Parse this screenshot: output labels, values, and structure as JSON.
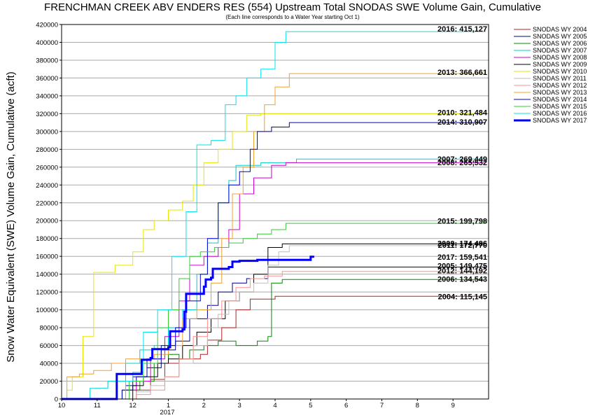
{
  "chart_data": {
    "type": "line",
    "title": "FRENCHMAN CREEK ABV ENDERS RES (554) Upstream Total SNODAS SWE Volume Gain, Cumulative",
    "subtitle": "(Each line corresponds to a Water Year starting Oct 1)",
    "ylabel": "Snow Water Equivalent (SWE) Volume Gain, Cumulative (acft)",
    "xlabel": "",
    "x_unit": "month of water year (10 = Oct 1)",
    "xlim": [
      10,
      22
    ],
    "ylim": [
      0,
      420000
    ],
    "grid": true,
    "legend_position": "right",
    "x_ticks": [
      "10",
      "11",
      "12",
      "1",
      "2",
      "3",
      "4",
      "5",
      "6",
      "7",
      "8",
      "9"
    ],
    "year_label": "2017",
    "y_ticks": [
      "0",
      "20000",
      "40000",
      "60000",
      "80000",
      "100000",
      "120000",
      "140000",
      "160000",
      "180000",
      "200000",
      "220000",
      "240000",
      "260000",
      "280000",
      "300000",
      "320000",
      "340000",
      "360000",
      "380000",
      "400000",
      "420000"
    ],
    "series": [
      {
        "name": "SNODAS WY 2004",
        "color": "#b22222",
        "width": 1,
        "points": [
          [
            10,
            0
          ],
          [
            11.9,
            0
          ],
          [
            12.1,
            10000
          ],
          [
            12.5,
            22000
          ],
          [
            12.9,
            40000
          ],
          [
            13.3,
            45000
          ],
          [
            13.9,
            50000
          ],
          [
            14.1,
            66000
          ],
          [
            14.5,
            80000
          ],
          [
            14.9,
            100000
          ],
          [
            15.3,
            112000
          ],
          [
            16,
            115145
          ],
          [
            21.9,
            115145
          ]
        ]
      },
      {
        "name": "SNODAS WY 2005",
        "color": "#00008b",
        "width": 1,
        "points": [
          [
            10,
            0
          ],
          [
            11.6,
            0
          ],
          [
            11.8,
            15000
          ],
          [
            12.1,
            25000
          ],
          [
            12.4,
            35000
          ],
          [
            12.8,
            55000
          ],
          [
            13.2,
            65000
          ],
          [
            13.6,
            90000
          ],
          [
            14.1,
            105000
          ],
          [
            14.4,
            120000
          ],
          [
            14.8,
            130000
          ],
          [
            15.2,
            135000
          ],
          [
            15.8,
            148000
          ],
          [
            16.2,
            148000
          ],
          [
            21.9,
            149475
          ]
        ]
      },
      {
        "name": "SNODAS WY 2006",
        "color": "#008b00",
        "width": 1,
        "points": [
          [
            10,
            0
          ],
          [
            11.4,
            0
          ],
          [
            11.7,
            10000
          ],
          [
            12.2,
            20000
          ],
          [
            12.6,
            40000
          ],
          [
            13.0,
            50000
          ],
          [
            13.3,
            45000
          ],
          [
            13.6,
            55000
          ],
          [
            14.0,
            60000
          ],
          [
            14.4,
            65000
          ],
          [
            14.9,
            60000
          ],
          [
            15.5,
            65000
          ],
          [
            15.8,
            70000
          ],
          [
            15.9,
            130000
          ],
          [
            16.2,
            134000
          ],
          [
            21.9,
            134543
          ]
        ]
      },
      {
        "name": "SNODAS WY 2007",
        "color": "#00cdcd",
        "width": 1,
        "points": [
          [
            10,
            0
          ],
          [
            10.5,
            0
          ],
          [
            10.8,
            12000
          ],
          [
            11.3,
            20000
          ],
          [
            11.8,
            40000
          ],
          [
            12.2,
            55000
          ],
          [
            12.6,
            60000
          ],
          [
            13.0,
            80000
          ],
          [
            13.4,
            100000
          ],
          [
            13.8,
            140000
          ],
          [
            14.1,
            175000
          ],
          [
            14.4,
            220000
          ],
          [
            14.7,
            245000
          ],
          [
            14.9,
            262000
          ],
          [
            15.6,
            265000
          ],
          [
            16.6,
            269000
          ],
          [
            21.9,
            269449
          ]
        ]
      },
      {
        "name": "SNODAS WY 2008",
        "color": "#cd00cd",
        "width": 1,
        "points": [
          [
            10,
            0
          ],
          [
            11.5,
            0
          ],
          [
            11.8,
            10000
          ],
          [
            12.1,
            20000
          ],
          [
            12.5,
            45000
          ],
          [
            12.9,
            70000
          ],
          [
            13.3,
            110000
          ],
          [
            13.6,
            150000
          ],
          [
            14.0,
            160000
          ],
          [
            14.4,
            170000
          ],
          [
            14.7,
            190000
          ],
          [
            15.0,
            230000
          ],
          [
            15.4,
            248000
          ],
          [
            15.9,
            262000
          ],
          [
            16.3,
            265000
          ],
          [
            21.9,
            265532
          ]
        ]
      },
      {
        "name": "SNODAS WY 2009",
        "color": "#000000",
        "width": 1,
        "points": [
          [
            10,
            0
          ],
          [
            11.6,
            0
          ],
          [
            12.0,
            15000
          ],
          [
            12.3,
            25000
          ],
          [
            12.7,
            40000
          ],
          [
            13.0,
            45000
          ],
          [
            13.4,
            60000
          ],
          [
            13.8,
            75000
          ],
          [
            14.2,
            90000
          ],
          [
            14.6,
            110000
          ],
          [
            15.0,
            120000
          ],
          [
            15.4,
            140000
          ],
          [
            15.8,
            170000
          ],
          [
            16.2,
            174000
          ],
          [
            21.9,
            174486
          ]
        ]
      },
      {
        "name": "SNODAS WY 2010",
        "color": "#e6e600",
        "width": 1,
        "points": [
          [
            10,
            0
          ],
          [
            10.15,
            10000
          ],
          [
            10.3,
            25000
          ],
          [
            10.6,
            70000
          ],
          [
            10.9,
            142000
          ],
          [
            11.5,
            150000
          ],
          [
            12.0,
            165000
          ],
          [
            12.3,
            190000
          ],
          [
            12.6,
            200000
          ],
          [
            13.0,
            212000
          ],
          [
            13.4,
            222000
          ],
          [
            13.7,
            240000
          ],
          [
            14.0,
            265000
          ],
          [
            14.4,
            280000
          ],
          [
            14.8,
            300000
          ],
          [
            15.2,
            318000
          ],
          [
            15.6,
            320000
          ],
          [
            21.9,
            321484
          ]
        ]
      },
      {
        "name": "SNODAS WY 2011",
        "color": "#bebebe",
        "width": 1,
        "points": [
          [
            10,
            0
          ],
          [
            11.8,
            0
          ],
          [
            12.1,
            8000
          ],
          [
            12.5,
            15000
          ],
          [
            12.9,
            25000
          ],
          [
            13.3,
            40000
          ],
          [
            13.7,
            60000
          ],
          [
            14.1,
            80000
          ],
          [
            14.4,
            95000
          ],
          [
            14.7,
            110000
          ],
          [
            15.0,
            120000
          ],
          [
            15.4,
            130000
          ],
          [
            15.8,
            150000
          ],
          [
            16.1,
            165000
          ],
          [
            16.4,
            172000
          ],
          [
            21.9,
            172770
          ]
        ]
      },
      {
        "name": "SNODAS WY 2012",
        "color": "#ff8c8c",
        "width": 1,
        "points": [
          [
            10,
            0
          ],
          [
            11.8,
            0
          ],
          [
            12.1,
            5000
          ],
          [
            12.5,
            10000
          ],
          [
            12.9,
            25000
          ],
          [
            13.3,
            45000
          ],
          [
            13.7,
            70000
          ],
          [
            14.1,
            90000
          ],
          [
            14.5,
            110000
          ],
          [
            14.9,
            125000
          ],
          [
            15.3,
            135000
          ],
          [
            15.7,
            138000
          ],
          [
            16.2,
            143000
          ],
          [
            21.9,
            144192
          ]
        ]
      },
      {
        "name": "SNODAS WY 2013",
        "color": "#f0a030",
        "width": 1,
        "points": [
          [
            10,
            0
          ],
          [
            10.15,
            25000
          ],
          [
            10.5,
            28000
          ],
          [
            10.9,
            32000
          ],
          [
            11.4,
            40000
          ],
          [
            11.8,
            45000
          ],
          [
            12.2,
            45000
          ],
          [
            12.6,
            50000
          ],
          [
            13.0,
            60000
          ],
          [
            13.4,
            90000
          ],
          [
            13.8,
            100000
          ],
          [
            14.2,
            130000
          ],
          [
            14.5,
            180000
          ],
          [
            14.8,
            230000
          ],
          [
            15.1,
            260000
          ],
          [
            15.4,
            300000
          ],
          [
            15.7,
            330000
          ],
          [
            16.0,
            350000
          ],
          [
            16.4,
            365000
          ],
          [
            21.9,
            366661
          ]
        ]
      },
      {
        "name": "SNODAS WY 2014",
        "color": "#0000cd",
        "width": 1,
        "points": [
          [
            10,
            0
          ],
          [
            11.4,
            0
          ],
          [
            11.7,
            10000
          ],
          [
            12.0,
            25000
          ],
          [
            12.4,
            45000
          ],
          [
            12.8,
            60000
          ],
          [
            13.2,
            80000
          ],
          [
            13.5,
            110000
          ],
          [
            13.9,
            140000
          ],
          [
            14.1,
            180000
          ],
          [
            14.4,
            220000
          ],
          [
            14.7,
            240000
          ],
          [
            15.0,
            255000
          ],
          [
            15.3,
            280000
          ],
          [
            15.5,
            300000
          ],
          [
            15.9,
            305000
          ],
          [
            16.4,
            310000
          ],
          [
            21.9,
            310907
          ]
        ]
      },
      {
        "name": "SNODAS WY 2015",
        "color": "#32cd32",
        "width": 1,
        "points": [
          [
            10,
            0
          ],
          [
            11.5,
            0
          ],
          [
            11.9,
            20000
          ],
          [
            12.3,
            40000
          ],
          [
            12.7,
            80000
          ],
          [
            13.0,
            100000
          ],
          [
            13.3,
            135000
          ],
          [
            13.6,
            160000
          ],
          [
            13.9,
            165000
          ],
          [
            14.3,
            170000
          ],
          [
            14.7,
            175000
          ],
          [
            15.1,
            180000
          ],
          [
            15.5,
            185000
          ],
          [
            15.9,
            190000
          ],
          [
            16.3,
            197000
          ],
          [
            21.9,
            199798
          ]
        ]
      },
      {
        "name": "SNODAS WY 2016",
        "color": "#00e5ee",
        "width": 1,
        "points": [
          [
            10,
            0
          ],
          [
            11.6,
            0
          ],
          [
            11.8,
            20000
          ],
          [
            12.0,
            30000
          ],
          [
            12.3,
            75000
          ],
          [
            12.7,
            100000
          ],
          [
            13.1,
            160000
          ],
          [
            13.5,
            210000
          ],
          [
            13.8,
            285000
          ],
          [
            14.2,
            290000
          ],
          [
            14.6,
            330000
          ],
          [
            14.9,
            340000
          ],
          [
            15.2,
            360000
          ],
          [
            15.6,
            370000
          ],
          [
            16.0,
            400000
          ],
          [
            16.3,
            412000
          ],
          [
            21.9,
            415127
          ]
        ]
      },
      {
        "name": "SNODAS WY 2017",
        "color": "#0000ff",
        "width": 3,
        "points": [
          [
            10,
            0
          ],
          [
            11.5,
            0
          ],
          [
            11.55,
            28000
          ],
          [
            12.2,
            28000
          ],
          [
            12.25,
            44000
          ],
          [
            12.5,
            46000
          ],
          [
            12.55,
            56000
          ],
          [
            13.0,
            58000
          ],
          [
            13.05,
            76000
          ],
          [
            13.4,
            78000
          ],
          [
            13.45,
            98000
          ],
          [
            13.5,
            118000
          ],
          [
            14.0,
            126000
          ],
          [
            14.05,
            134000
          ],
          [
            14.2,
            136000
          ],
          [
            14.25,
            146000
          ],
          [
            14.7,
            148000
          ],
          [
            14.8,
            154000
          ],
          [
            15.0,
            155000
          ],
          [
            15.5,
            156000
          ],
          [
            16.0,
            156000
          ],
          [
            17.0,
            159500
          ],
          [
            17.1,
            159541
          ]
        ]
      }
    ],
    "annotations": [
      {
        "text": "2016: 415,127",
        "y": 415127
      },
      {
        "text": "2013: 366,661",
        "y": 366661
      },
      {
        "text": "2010: 321,484",
        "y": 321484
      },
      {
        "text": "2014: 310,907",
        "y": 310907
      },
      {
        "text": "2007: 269,449",
        "y": 269449
      },
      {
        "text": "2008: 265,532",
        "y": 265532
      },
      {
        "text": "2015: 199,798",
        "y": 199798
      },
      {
        "text": "2009: 174,486",
        "y": 174486
      },
      {
        "text": "2011: 172,770",
        "y": 172770
      },
      {
        "text": "2017: 159,541",
        "y": 159541
      },
      {
        "text": "2005: 149,475",
        "y": 149475
      },
      {
        "text": "2012: 144,192",
        "y": 144192
      },
      {
        "text": "2006: 134,543",
        "y": 134543
      },
      {
        "text": "2004: 115,145",
        "y": 115145
      }
    ]
  }
}
